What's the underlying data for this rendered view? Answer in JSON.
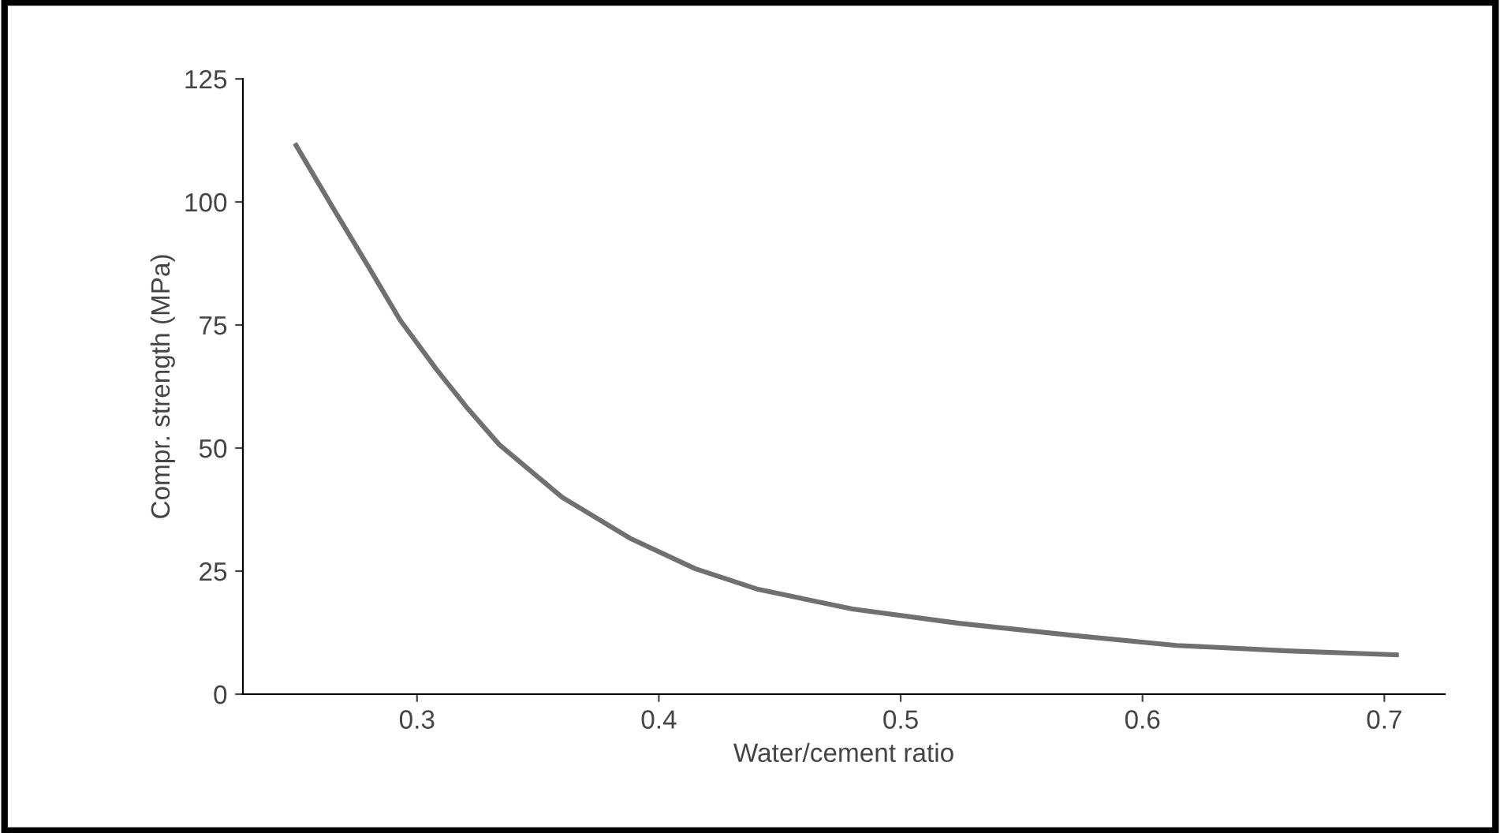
{
  "chart_data": {
    "type": "line",
    "xlabel": "Water/cement ratio",
    "ylabel": "Compr. strength (MPa)",
    "x": [
      0.25,
      0.265,
      0.279,
      0.293,
      0.308,
      0.321,
      0.334,
      0.36,
      0.388,
      0.415,
      0.441,
      0.48,
      0.524,
      0.57,
      0.614,
      0.66,
      0.705
    ],
    "series": [
      {
        "color": "#707070",
        "values": [
          111.5,
          99,
          87.6,
          76,
          66,
          58,
          50.7,
          40,
          31.7,
          25.5,
          21.3,
          17.3,
          14.4,
          12,
          9.9,
          8.8,
          8
        ]
      }
    ],
    "xlim": [
      0.228,
      0.725
    ],
    "ylim": [
      0,
      125
    ],
    "xticks": [
      0.3,
      0.4,
      0.5,
      0.6,
      0.7
    ],
    "yticks": [
      0,
      25,
      50,
      75,
      100,
      125
    ],
    "grid": false,
    "marker": "none",
    "line_style": "solid"
  }
}
